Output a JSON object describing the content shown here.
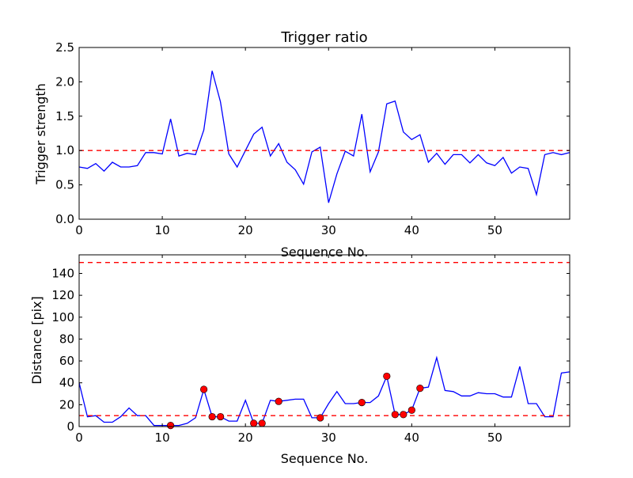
{
  "chart_data": [
    {
      "type": "line",
      "title": "Trigger ratio",
      "xlabel": "Sequence No.",
      "ylabel": "Trigger strength",
      "xlim": [
        0,
        59
      ],
      "ylim": [
        0,
        2.5
      ],
      "xticks": [
        0,
        10,
        20,
        30,
        40,
        50
      ],
      "yticks": [
        0.0,
        0.5,
        1.0,
        1.5,
        2.0,
        2.5
      ],
      "ytick_labels": [
        "0.0",
        "0.5",
        "1.0",
        "1.5",
        "2.0",
        "2.5"
      ],
      "grid": false,
      "series": [
        {
          "name": "trigger ratio",
          "color": "#0000ff",
          "x": [
            0,
            1,
            2,
            3,
            4,
            5,
            6,
            7,
            8,
            9,
            10,
            11,
            12,
            13,
            14,
            15,
            16,
            17,
            18,
            19,
            20,
            21,
            22,
            23,
            24,
            25,
            26,
            27,
            28,
            29,
            30,
            31,
            32,
            33,
            34,
            35,
            36,
            37,
            38,
            39,
            40,
            41,
            42,
            43,
            44,
            45,
            46,
            47,
            48,
            49,
            50,
            51,
            52,
            53,
            54,
            55,
            56,
            57,
            58,
            59
          ],
          "values": [
            0.76,
            0.74,
            0.81,
            0.7,
            0.83,
            0.76,
            0.76,
            0.78,
            0.97,
            0.97,
            0.95,
            1.46,
            0.92,
            0.96,
            0.94,
            1.3,
            2.16,
            1.71,
            0.95,
            0.76,
            1.0,
            1.24,
            1.34,
            0.92,
            1.1,
            0.83,
            0.72,
            0.51,
            0.98,
            1.05,
            0.24,
            0.66,
            0.99,
            0.92,
            1.53,
            0.69,
            0.98,
            1.68,
            1.72,
            1.27,
            1.16,
            1.23,
            0.83,
            0.96,
            0.8,
            0.94,
            0.94,
            0.82,
            0.94,
            0.82,
            0.78,
            0.9,
            0.67,
            0.76,
            0.74,
            0.36,
            0.94,
            0.97,
            0.94,
            0.97
          ]
        }
      ],
      "hlines": [
        {
          "y": 1.0,
          "color": "#ff0000",
          "style": "dashed"
        }
      ]
    },
    {
      "type": "line",
      "title": "",
      "xlabel": "Sequence No.",
      "ylabel": "Distance [pix]",
      "xlim": [
        0,
        59
      ],
      "ylim": [
        0,
        157
      ],
      "xticks": [
        0,
        10,
        20,
        30,
        40,
        50
      ],
      "yticks": [
        0,
        20,
        40,
        60,
        80,
        100,
        120,
        140
      ],
      "ytick_labels": [
        "0",
        "20",
        "40",
        "60",
        "80",
        "100",
        "120",
        "140"
      ],
      "grid": false,
      "series": [
        {
          "name": "distance",
          "color": "#0000ff",
          "x": [
            0,
            1,
            2,
            3,
            4,
            5,
            6,
            7,
            8,
            9,
            10,
            11,
            12,
            13,
            14,
            15,
            16,
            17,
            18,
            19,
            20,
            21,
            22,
            23,
            24,
            25,
            26,
            27,
            28,
            29,
            30,
            31,
            32,
            33,
            34,
            35,
            36,
            37,
            38,
            39,
            40,
            41,
            42,
            43,
            44,
            45,
            46,
            47,
            48,
            49,
            50,
            51,
            52,
            53,
            54,
            55,
            56,
            57,
            58,
            59
          ],
          "values": [
            40,
            9,
            10,
            4,
            4,
            9,
            17,
            10,
            10,
            1,
            1,
            1,
            1,
            3,
            8,
            34,
            9,
            9,
            5,
            5,
            24,
            3,
            3,
            24,
            23,
            24,
            25,
            25,
            8,
            8,
            21,
            32,
            21,
            21,
            22,
            22,
            28,
            46,
            11,
            11,
            15,
            35,
            36,
            63,
            33,
            32,
            28,
            28,
            31,
            30,
            30,
            27,
            27,
            55,
            21,
            21,
            9,
            9,
            49,
            50
          ]
        }
      ],
      "markers": {
        "color": "#ff0000",
        "x": [
          11,
          15,
          16,
          17,
          21,
          22,
          24,
          29,
          34,
          37,
          38,
          39,
          40,
          41
        ]
      },
      "hlines": [
        {
          "y": 10,
          "color": "#ff0000",
          "style": "dashed"
        },
        {
          "y": 150,
          "color": "#ff0000",
          "style": "dashed"
        }
      ]
    }
  ]
}
